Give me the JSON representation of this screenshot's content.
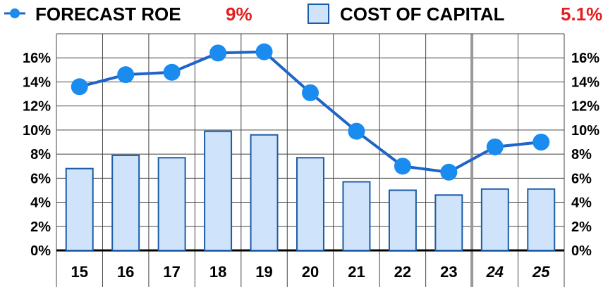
{
  "legend": {
    "roe_label": "FORECAST ROE",
    "roe_value": "9%",
    "coc_label": "COST OF CAPITAL",
    "coc_value": "5.1%"
  },
  "colors": {
    "line": "#1f64c8",
    "marker": "#1a8cf0",
    "bar_fill": "#cfe4fa",
    "bar_stroke": "#1b5ca8",
    "value_text": "#e41e1e",
    "grid": "#444444",
    "forecast_divider": "#999999"
  },
  "chart_data": {
    "type": "bar",
    "categories": [
      "15",
      "16",
      "17",
      "18",
      "19",
      "20",
      "21",
      "22",
      "23",
      "24",
      "25"
    ],
    "forecast_categories": [
      "24",
      "25"
    ],
    "ylim": [
      0,
      18
    ],
    "yticks": [
      "0%",
      "2%",
      "4%",
      "6%",
      "8%",
      "10%",
      "12%",
      "14%",
      "16%"
    ],
    "ytick_values": [
      0,
      2,
      4,
      6,
      8,
      10,
      12,
      14,
      16
    ],
    "grid": true,
    "legend_position": "top",
    "series": [
      {
        "name": "FORECAST ROE",
        "kind": "line",
        "values": [
          13.6,
          14.6,
          14.8,
          16.4,
          16.5,
          13.1,
          9.9,
          7.0,
          6.5,
          8.6,
          9.0
        ]
      },
      {
        "name": "COST OF CAPITAL",
        "kind": "bar",
        "values": [
          6.8,
          7.9,
          7.7,
          9.9,
          9.6,
          7.7,
          5.7,
          5.0,
          4.6,
          5.1,
          5.1
        ]
      }
    ]
  }
}
